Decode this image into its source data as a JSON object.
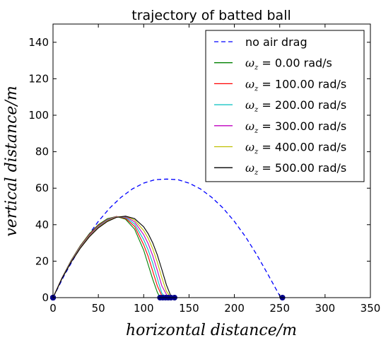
{
  "chart_data": {
    "type": "line",
    "title": "trajectory of batted ball",
    "xlabel": "horizontal distance/m",
    "ylabel": "vertical distance/m",
    "xlim": [
      0,
      350
    ],
    "ylim": [
      0,
      150
    ],
    "xticks": [
      "0",
      "50",
      "100",
      "150",
      "200",
      "250",
      "300",
      "350"
    ],
    "yticks": [
      "0",
      "20",
      "40",
      "60",
      "80",
      "100",
      "120",
      "140"
    ],
    "grid": false,
    "legend_position": "top-right",
    "series": [
      {
        "name": "no air drag",
        "color": "#0000ff",
        "dash": true,
        "marker": "dot",
        "x": [
          0,
          12.5,
          25,
          37.5,
          50,
          62.5,
          75,
          87.5,
          100,
          112.5,
          125,
          137.5,
          150,
          162.5,
          175,
          187.5,
          200,
          212.5,
          225,
          237.5,
          250,
          253
        ],
        "y": [
          0,
          12.3,
          23.3,
          33.2,
          41.8,
          49.1,
          55.0,
          59.6,
          62.8,
          64.7,
          65.0,
          64.7,
          62.8,
          59.6,
          55.0,
          49.1,
          41.8,
          33.2,
          23.3,
          12.3,
          1.0,
          0
        ]
      },
      {
        "name_prefix": "ω",
        "name_sub": "z",
        "name_suffix": " = 0.00 rad/s",
        "color": "#008000",
        "dash": false,
        "marker": "dot",
        "x": [
          0,
          10,
          20,
          30,
          40,
          50,
          60,
          70,
          80,
          90,
          100,
          105,
          110,
          115,
          118
        ],
        "y": [
          0,
          11,
          20.5,
          28.5,
          35,
          40,
          43.3,
          44.5,
          43,
          37.5,
          26,
          18,
          10,
          3,
          0
        ]
      },
      {
        "name_prefix": "ω",
        "name_sub": "z",
        "name_suffix": " = 100.00 rad/s",
        "color": "#ff0000",
        "dash": false,
        "marker": "dot",
        "x": [
          0,
          10,
          20,
          30,
          40,
          50,
          60,
          70,
          80,
          90,
          100,
          105,
          110,
          115,
          121
        ],
        "y": [
          0,
          10.9,
          20.3,
          28.2,
          34.6,
          39.6,
          43,
          44.5,
          43.5,
          39,
          29,
          22.5,
          14.5,
          6.5,
          0
        ]
      },
      {
        "name_prefix": "ω",
        "name_sub": "z",
        "name_suffix": " = 200.00 rad/s",
        "color": "#00bfbf",
        "dash": false,
        "marker": "dot",
        "x": [
          0,
          10,
          20,
          30,
          40,
          50,
          60,
          70,
          80,
          90,
          100,
          105,
          110,
          115,
          120,
          124
        ],
        "y": [
          0,
          10.8,
          20.1,
          27.9,
          34.2,
          39.2,
          42.7,
          44.4,
          44,
          40.3,
          31.8,
          26,
          18.9,
          10.5,
          2.5,
          0
        ]
      },
      {
        "name_prefix": "ω",
        "name_sub": "z",
        "name_suffix": " = 300.00 rad/s",
        "color": "#bf00bf",
        "dash": false,
        "marker": "dot",
        "x": [
          0,
          10,
          20,
          30,
          40,
          50,
          60,
          70,
          80,
          90,
          100,
          105,
          110,
          115,
          120,
          127
        ],
        "y": [
          0,
          10.7,
          19.9,
          27.6,
          33.9,
          38.8,
          42.4,
          44.3,
          44.4,
          41.5,
          34.5,
          29.5,
          23,
          15,
          6.5,
          0
        ]
      },
      {
        "name_prefix": "ω",
        "name_sub": "z",
        "name_suffix": " = 400.00 rad/s",
        "color": "#bfbf00",
        "dash": false,
        "marker": "dot",
        "x": [
          0,
          10,
          20,
          30,
          40,
          50,
          60,
          70,
          80,
          90,
          100,
          105,
          110,
          115,
          120,
          125,
          130
        ],
        "y": [
          0,
          10.6,
          19.7,
          27.3,
          33.6,
          38.5,
          42.1,
          44.2,
          44.6,
          42.5,
          36.8,
          32.5,
          26.8,
          19.5,
          11,
          3.5,
          0
        ]
      },
      {
        "name_prefix": "ω",
        "name_sub": "z",
        "name_suffix": " = 500.00 rad/s",
        "color": "#000000",
        "dash": false,
        "marker": "dot",
        "x": [
          0,
          10,
          20,
          30,
          40,
          50,
          60,
          70,
          80,
          90,
          100,
          105,
          110,
          115,
          120,
          125,
          130,
          134
        ],
        "y": [
          0,
          10.5,
          19.5,
          27,
          33.3,
          38.2,
          41.8,
          44,
          44.7,
          43.3,
          38.8,
          35,
          30,
          23.5,
          15.5,
          7,
          0.8,
          0
        ]
      }
    ]
  }
}
